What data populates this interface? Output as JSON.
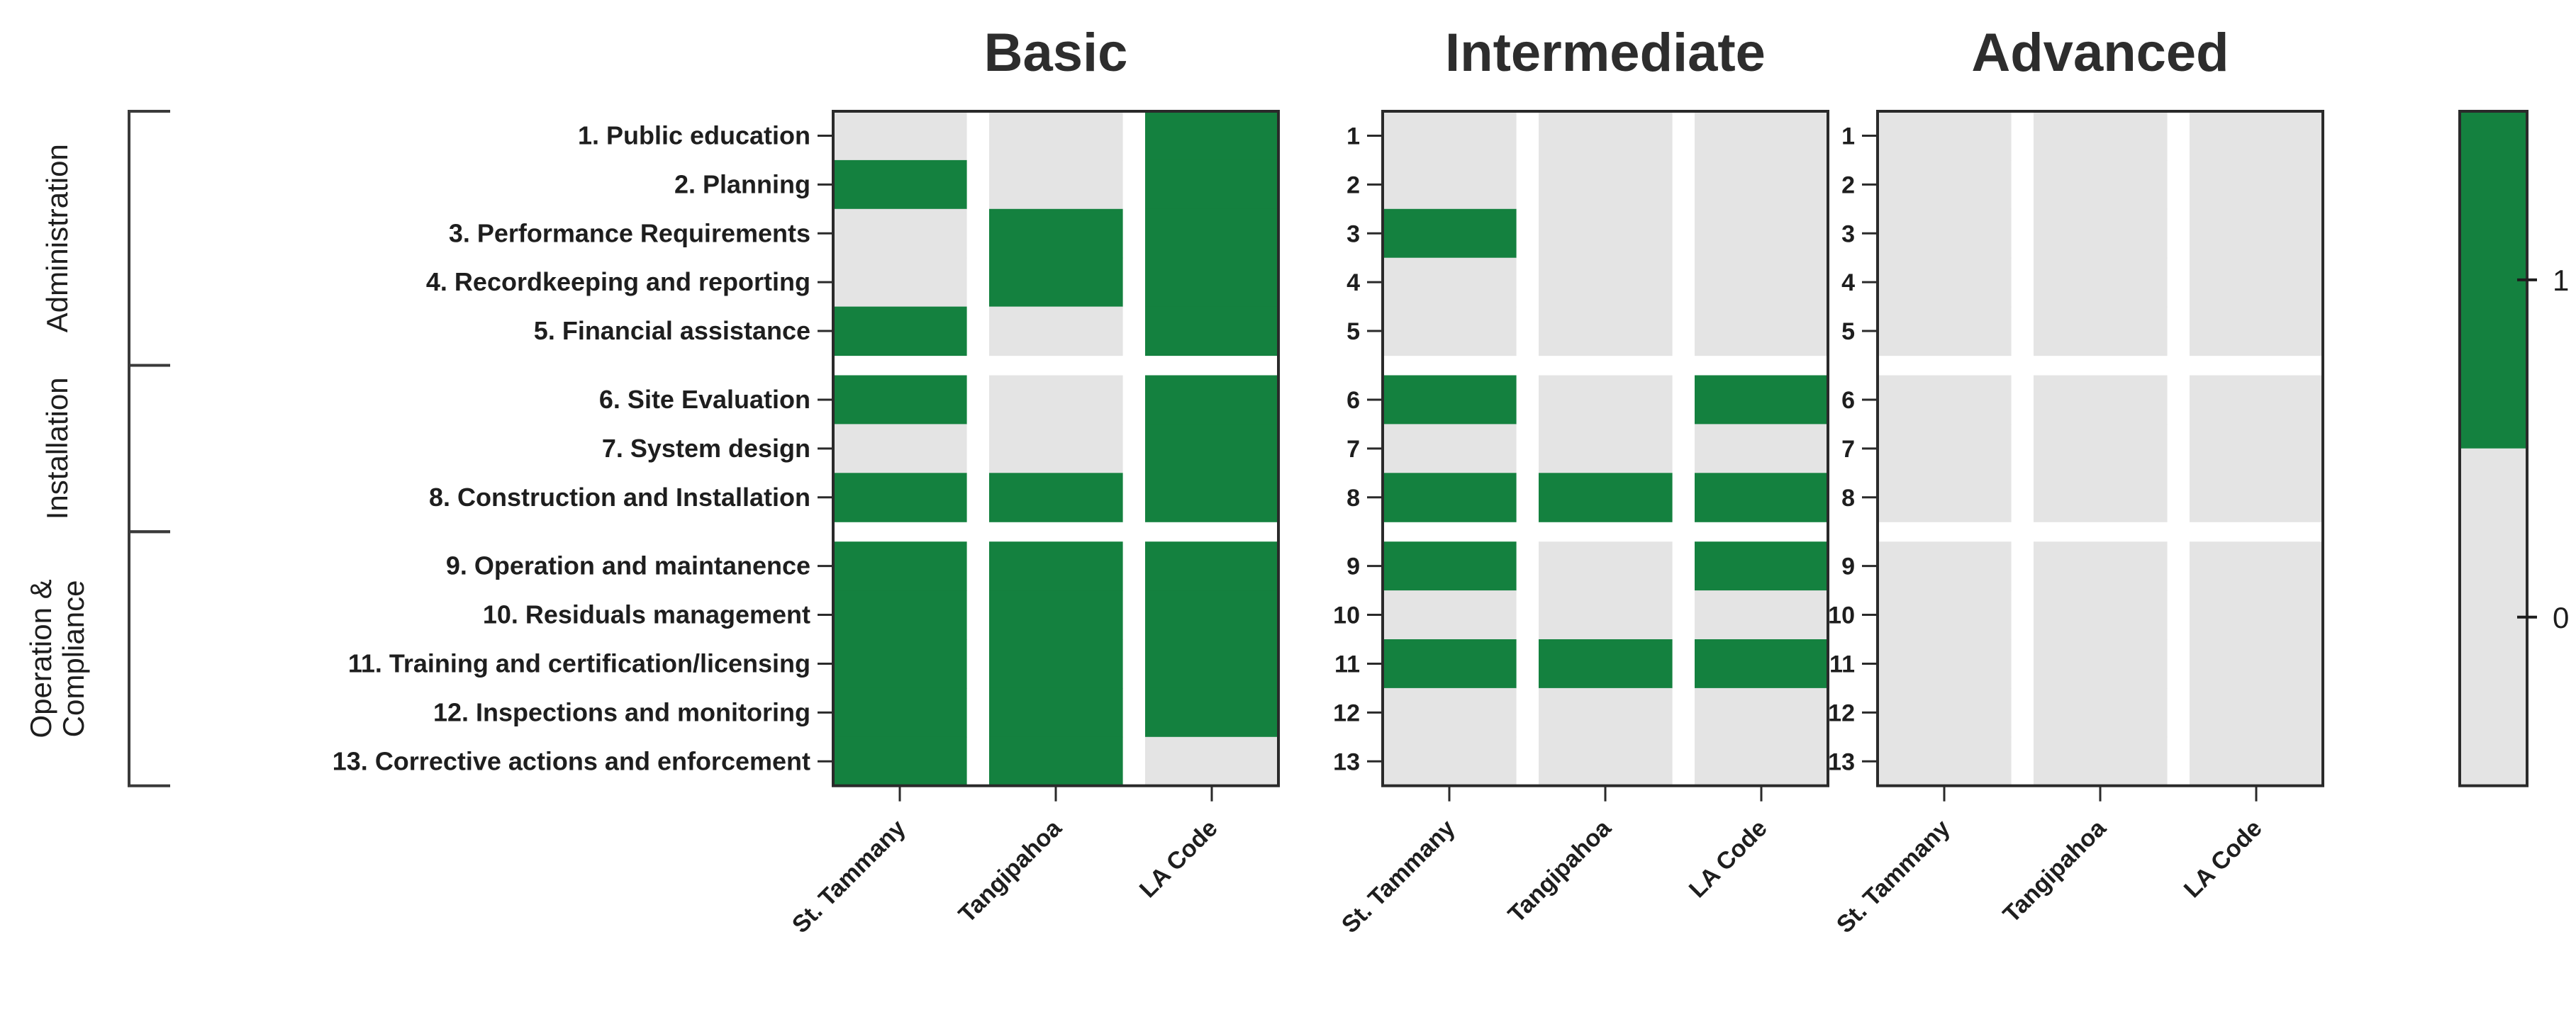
{
  "chart_data": {
    "type": "heatmap",
    "panels": [
      {
        "title": "Basic",
        "row_labels": [
          "1. Public education",
          "2. Planning",
          "3. Performance Requirements",
          "4. Recordkeeping and reporting",
          "5. Financial assistance",
          "6. Site Evaluation",
          "7. System design",
          "8. Construction and Installation",
          "9. Operation and maintanence",
          "10. Residuals management",
          "11. Training and certification/licensing",
          "12. Inspections and monitoring",
          "13. Corrective actions and enforcement"
        ],
        "columns": [
          "St. Tammany",
          "Tangipahoa",
          "LA Code"
        ],
        "values": [
          [
            0,
            0,
            1
          ],
          [
            1,
            0,
            1
          ],
          [
            0,
            1,
            1
          ],
          [
            0,
            1,
            1
          ],
          [
            1,
            0,
            1
          ],
          [
            1,
            0,
            1
          ],
          [
            0,
            0,
            1
          ],
          [
            1,
            1,
            1
          ],
          [
            1,
            1,
            1
          ],
          [
            1,
            1,
            1
          ],
          [
            1,
            1,
            1
          ],
          [
            1,
            1,
            1
          ],
          [
            1,
            1,
            0
          ]
        ]
      },
      {
        "title": "Intermediate",
        "row_labels": [
          "1",
          "2",
          "3",
          "4",
          "5",
          "6",
          "7",
          "8",
          "9",
          "10",
          "11",
          "12",
          "13"
        ],
        "columns": [
          "St. Tammany",
          "Tangipahoa",
          "LA Code"
        ],
        "values": [
          [
            0,
            0,
            0
          ],
          [
            0,
            0,
            0
          ],
          [
            1,
            0,
            0
          ],
          [
            0,
            0,
            0
          ],
          [
            0,
            0,
            0
          ],
          [
            1,
            0,
            1
          ],
          [
            0,
            0,
            0
          ],
          [
            1,
            1,
            1
          ],
          [
            1,
            0,
            1
          ],
          [
            0,
            0,
            0
          ],
          [
            1,
            1,
            1
          ],
          [
            0,
            0,
            0
          ],
          [
            0,
            0,
            0
          ]
        ]
      },
      {
        "title": "Advanced",
        "row_labels": [
          "1",
          "2",
          "3",
          "4",
          "5",
          "6",
          "7",
          "8",
          "9",
          "10",
          "11",
          "12",
          "13"
        ],
        "columns": [
          "St. Tammany",
          "Tangipahoa",
          "LA Code"
        ],
        "values": [
          [
            0,
            0,
            0
          ],
          [
            0,
            0,
            0
          ],
          [
            0,
            0,
            0
          ],
          [
            0,
            0,
            0
          ],
          [
            0,
            0,
            0
          ],
          [
            0,
            0,
            0
          ],
          [
            0,
            0,
            0
          ],
          [
            0,
            0,
            0
          ],
          [
            0,
            0,
            0
          ],
          [
            0,
            0,
            0
          ],
          [
            0,
            0,
            0
          ],
          [
            0,
            0,
            0
          ],
          [
            0,
            0,
            0
          ]
        ]
      }
    ],
    "row_groups": [
      {
        "label": "Administration",
        "rows": [
          1,
          5
        ]
      },
      {
        "label": "Installation",
        "rows": [
          6,
          8
        ]
      },
      {
        "label_lines": [
          "Operation &",
          "Compliance"
        ],
        "rows": [
          9,
          13
        ]
      }
    ],
    "colorbar": {
      "ticks": [
        "0",
        "1"
      ],
      "range": [
        0,
        1
      ]
    },
    "colors": {
      "one": "#14813f",
      "zero": "#e4e4e4",
      "gap": "#ffffff",
      "frame": "#2a2a2a"
    }
  }
}
